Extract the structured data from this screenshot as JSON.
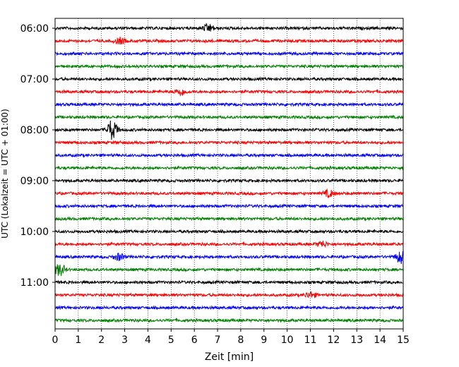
{
  "chart_data": {
    "type": "line",
    "title": "",
    "xlabel": "Zeit  [min]",
    "ylabel": "UTC (Lokalzeit = UTC + 01:00)",
    "xlim": [
      0,
      15
    ],
    "x_ticks": [
      "0",
      "1",
      "2",
      "3",
      "4",
      "5",
      "6",
      "7",
      "8",
      "9",
      "10",
      "11",
      "12",
      "13",
      "14",
      "15"
    ],
    "y_ticks": [
      {
        "label": "06:00",
        "trace_index": 0
      },
      {
        "label": "07:00",
        "trace_index": 4
      },
      {
        "label": "08:00",
        "trace_index": 8
      },
      {
        "label": "09:00",
        "trace_index": 12
      },
      {
        "label": "10:00",
        "trace_index": 16
      },
      {
        "label": "11:00",
        "trace_index": 20
      }
    ],
    "trace_interval_min": 15,
    "trace_count": 24,
    "trace_colors": [
      "#000000",
      "#ff0000",
      "#0000ff",
      "#008000"
    ],
    "grid": {
      "x": true,
      "y": false,
      "style": "dotted"
    },
    "events": [
      {
        "trace_index": 0,
        "x": 6.6,
        "amplitude": 0.35
      },
      {
        "trace_index": 1,
        "x": 2.8,
        "amplitude": 0.25
      },
      {
        "trace_index": 5,
        "x": 5.4,
        "amplitude": 0.3
      },
      {
        "trace_index": 8,
        "x": 2.45,
        "amplitude": 0.9
      },
      {
        "trace_index": 13,
        "x": 11.8,
        "amplitude": 0.3
      },
      {
        "trace_index": 17,
        "x": 11.5,
        "amplitude": 0.25
      },
      {
        "trace_index": 18,
        "x": 2.75,
        "amplitude": 0.3
      },
      {
        "trace_index": 18,
        "x": 14.9,
        "amplitude": 0.55
      },
      {
        "trace_index": 19,
        "x": 0.2,
        "amplitude": 0.55
      },
      {
        "trace_index": 21,
        "x": 11.0,
        "amplitude": 0.25
      }
    ]
  }
}
